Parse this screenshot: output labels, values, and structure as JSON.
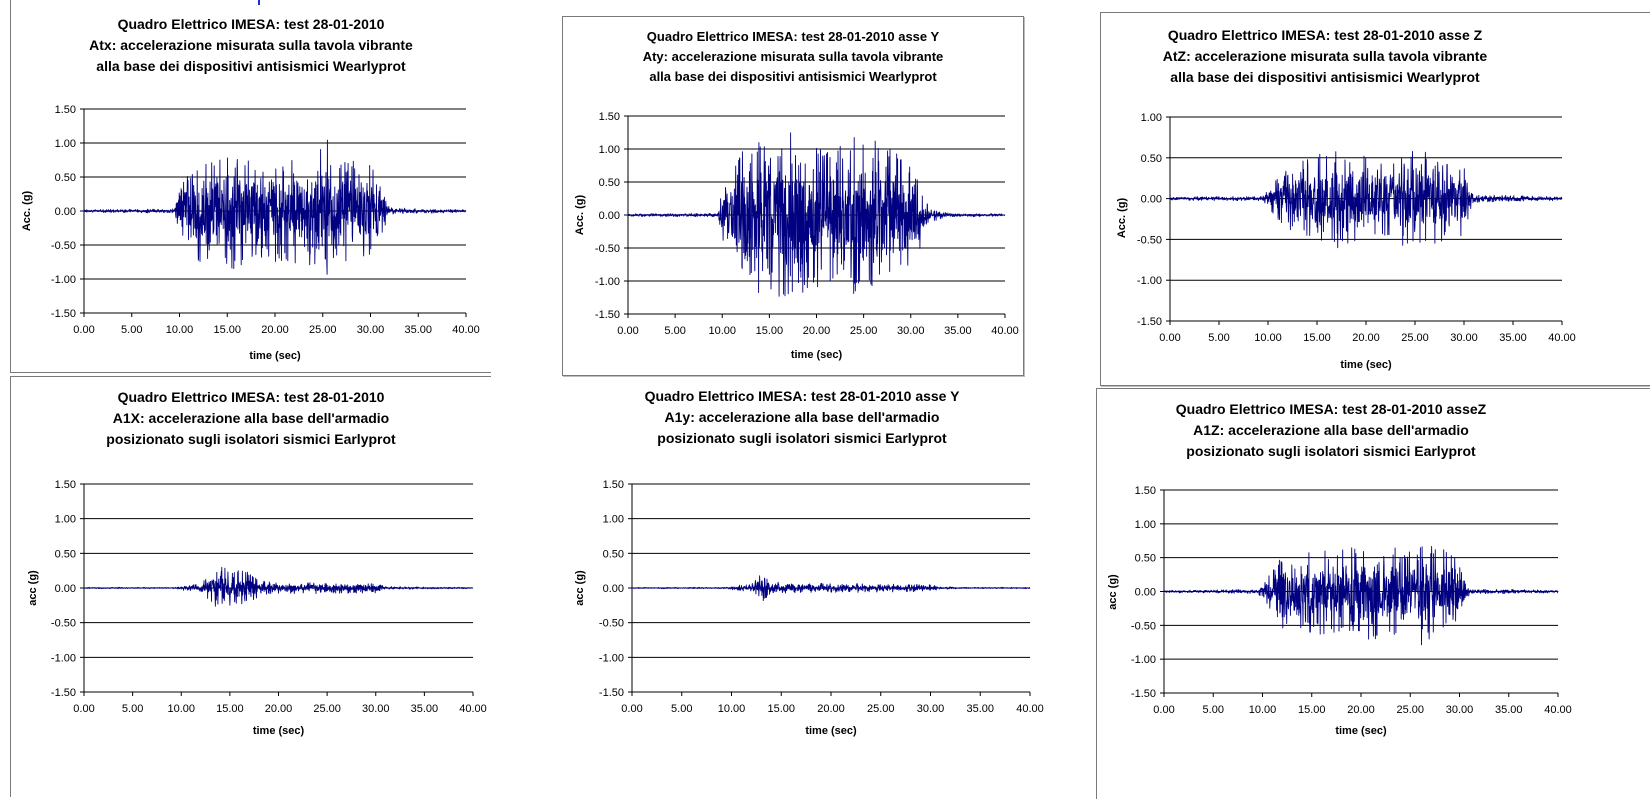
{
  "chart_data": [
    {
      "type": "line",
      "title": "Quadro Elettrico IMESA: test 28-01-2010",
      "subtitle": [
        "Atx: accelerazione misurata sulla tavola vibrante",
        "alla base dei dispositivi antisismici Wearlyprot"
      ],
      "xlabel": "time (sec)",
      "ylabel": "Acc. (g)",
      "xlim": [
        0,
        40
      ],
      "ylim": [
        -1.5,
        1.5
      ],
      "x_ticks": [
        "0.00",
        "5.00",
        "10.00",
        "15.00",
        "20.00",
        "25.00",
        "30.00",
        "35.00",
        "40.00"
      ],
      "y_ticks": [
        "1.50",
        "1.00",
        "0.50",
        "0.00",
        "-0.50",
        "-1.00",
        "-1.50"
      ],
      "grid": true,
      "series_color": "#000080",
      "series": [
        {
          "x": [
            0,
            9.5,
            10,
            12,
            14,
            15.8,
            16,
            20,
            24,
            25.5,
            26,
            28,
            30,
            31,
            32,
            40
          ],
          "envelope": [
            0.02,
            0.03,
            0.35,
            0.75,
            0.8,
            0.85,
            0.8,
            0.75,
            0.8,
            1.05,
            0.8,
            0.75,
            0.7,
            0.4,
            0.05,
            0.02
          ]
        }
      ]
    },
    {
      "type": "line",
      "title": "Quadro Elettrico IMESA: test 28-01-2010 asse Y",
      "subtitle": [
        "Aty: accelerazione misurata sulla tavola vibrante",
        "alla base dei dispositivi antisismici Wearlyprot"
      ],
      "xlabel": "time (sec)",
      "ylabel": "Acc. (g)",
      "xlim": [
        0,
        40
      ],
      "ylim": [
        -1.5,
        1.5
      ],
      "x_ticks": [
        "0.00",
        "5.00",
        "10.00",
        "15.00",
        "20.00",
        "25.00",
        "30.00",
        "35.00",
        "40.00"
      ],
      "y_ticks": [
        "1.50",
        "1.00",
        "0.50",
        "0.00",
        "-0.50",
        "-1.00",
        "-1.50"
      ],
      "grid": true,
      "series_color": "#000080",
      "series": [
        {
          "x": [
            0,
            9.5,
            10,
            12,
            14,
            15,
            17,
            20,
            22,
            24,
            26,
            28,
            30,
            32,
            33,
            34,
            40
          ],
          "envelope": [
            0.02,
            0.03,
            0.5,
            0.95,
            1.2,
            1.25,
            1.35,
            1.1,
            1.1,
            1.2,
            1.15,
            1.05,
            0.9,
            0.1,
            0.08,
            0.03,
            0.02
          ]
        }
      ]
    },
    {
      "type": "line",
      "title": "Quadro Elettrico IMESA: test 28-01-2010 asse Z",
      "subtitle": [
        "AtZ: accelerazione misurata sulla tavola vibrante",
        "alla base dei dispositivi antisismici Wearlyprot"
      ],
      "xlabel": "time (sec)",
      "ylabel": "Acc. (g)",
      "xlim": [
        0,
        40
      ],
      "ylim": [
        -1.5,
        1.0
      ],
      "x_ticks": [
        "0.00",
        "5.00",
        "10.00",
        "15.00",
        "20.00",
        "25.00",
        "30.00",
        "35.00",
        "40.00"
      ],
      "y_ticks": [
        "1.00",
        "0.50",
        "0.00",
        "-0.50",
        "-1.00",
        "-1.50"
      ],
      "grid": true,
      "series_color": "#000080",
      "series": [
        {
          "x": [
            0,
            9.5,
            10,
            12,
            14,
            16.5,
            18,
            20,
            22,
            24,
            26,
            28,
            30,
            31,
            40
          ],
          "envelope": [
            0.02,
            0.03,
            0.12,
            0.4,
            0.5,
            0.65,
            0.55,
            0.55,
            0.5,
            0.6,
            0.65,
            0.5,
            0.45,
            0.05,
            0.02
          ]
        }
      ]
    },
    {
      "type": "line",
      "title": "Quadro Elettrico IMESA: test 28-01-2010",
      "subtitle": [
        "A1X: accelerazione alla base dell'armadio",
        "posizionato sugli isolatori sismici Earlyprot"
      ],
      "xlabel": "time (sec)",
      "ylabel": "acc (g)",
      "xlim": [
        0,
        40
      ],
      "ylim": [
        -1.5,
        1.5
      ],
      "x_ticks": [
        "0.00",
        "5.00",
        "10.00",
        "15.00",
        "20.00",
        "25.00",
        "30.00",
        "35.00",
        "40.00"
      ],
      "y_ticks": [
        "1.50",
        "1.00",
        "0.50",
        "0.00",
        "-0.50",
        "-1.00",
        "-1.50"
      ],
      "grid": true,
      "series_color": "#000080",
      "series": [
        {
          "x": [
            0,
            9.5,
            10,
            12,
            13,
            14,
            15,
            16,
            17,
            18,
            20,
            25,
            30,
            31,
            40
          ],
          "envelope": [
            0.01,
            0.01,
            0.03,
            0.06,
            0.2,
            0.38,
            0.3,
            0.28,
            0.22,
            0.12,
            0.08,
            0.08,
            0.07,
            0.02,
            0.01
          ]
        }
      ]
    },
    {
      "type": "line",
      "title": "Quadro Elettrico IMESA: test 28-01-2010 asse Y",
      "subtitle": [
        "A1y: accelerazione alla base dell'armadio",
        "posizionato sugli isolatori sismici Earlyprot"
      ],
      "xlabel": "time (sec)",
      "ylabel": "acc (g)",
      "xlim": [
        0,
        40
      ],
      "ylim": [
        -1.5,
        1.5
      ],
      "x_ticks": [
        "0.00",
        "5.00",
        "10.00",
        "15.00",
        "20.00",
        "25.00",
        "30.00",
        "35.00",
        "40.00"
      ],
      "y_ticks": [
        "1.50",
        "1.00",
        "0.50",
        "0.00",
        "-0.50",
        "-1.00",
        "-1.50"
      ],
      "grid": true,
      "series_color": "#000080",
      "series": [
        {
          "x": [
            0,
            9.5,
            10,
            12,
            13,
            14,
            16,
            20,
            25,
            30,
            31,
            33,
            40
          ],
          "envelope": [
            0.01,
            0.01,
            0.03,
            0.06,
            0.22,
            0.1,
            0.07,
            0.07,
            0.06,
            0.05,
            0.02,
            0.01,
            0.01
          ]
        }
      ]
    },
    {
      "type": "line",
      "title": "Quadro Elettrico IMESA: test 28-01-2010 asseZ",
      "subtitle": [
        "A1Z: accelerazione alla base dell'armadio",
        "posizionato sugli isolatori sismici Earlyprot"
      ],
      "xlabel": "time (sec)",
      "ylabel": "acc (g)",
      "xlim": [
        0,
        40
      ],
      "ylim": [
        -1.5,
        1.5
      ],
      "x_ticks": [
        "0.00",
        "5.00",
        "10.00",
        "15.00",
        "20.00",
        "25.00",
        "30.00",
        "35.00",
        "40.00"
      ],
      "y_ticks": [
        "1.50",
        "1.00",
        "0.50",
        "0.00",
        "-0.50",
        "-1.00",
        "-1.50"
      ],
      "grid": true,
      "series_color": "#000080",
      "series": [
        {
          "x": [
            0,
            9.5,
            10,
            12,
            14,
            15,
            18,
            20,
            22,
            24,
            26,
            28,
            30,
            31,
            40
          ],
          "envelope": [
            0.02,
            0.03,
            0.1,
            0.55,
            0.6,
            0.72,
            0.65,
            0.7,
            0.72,
            0.65,
            0.8,
            0.65,
            0.6,
            0.04,
            0.02
          ]
        }
      ]
    }
  ]
}
